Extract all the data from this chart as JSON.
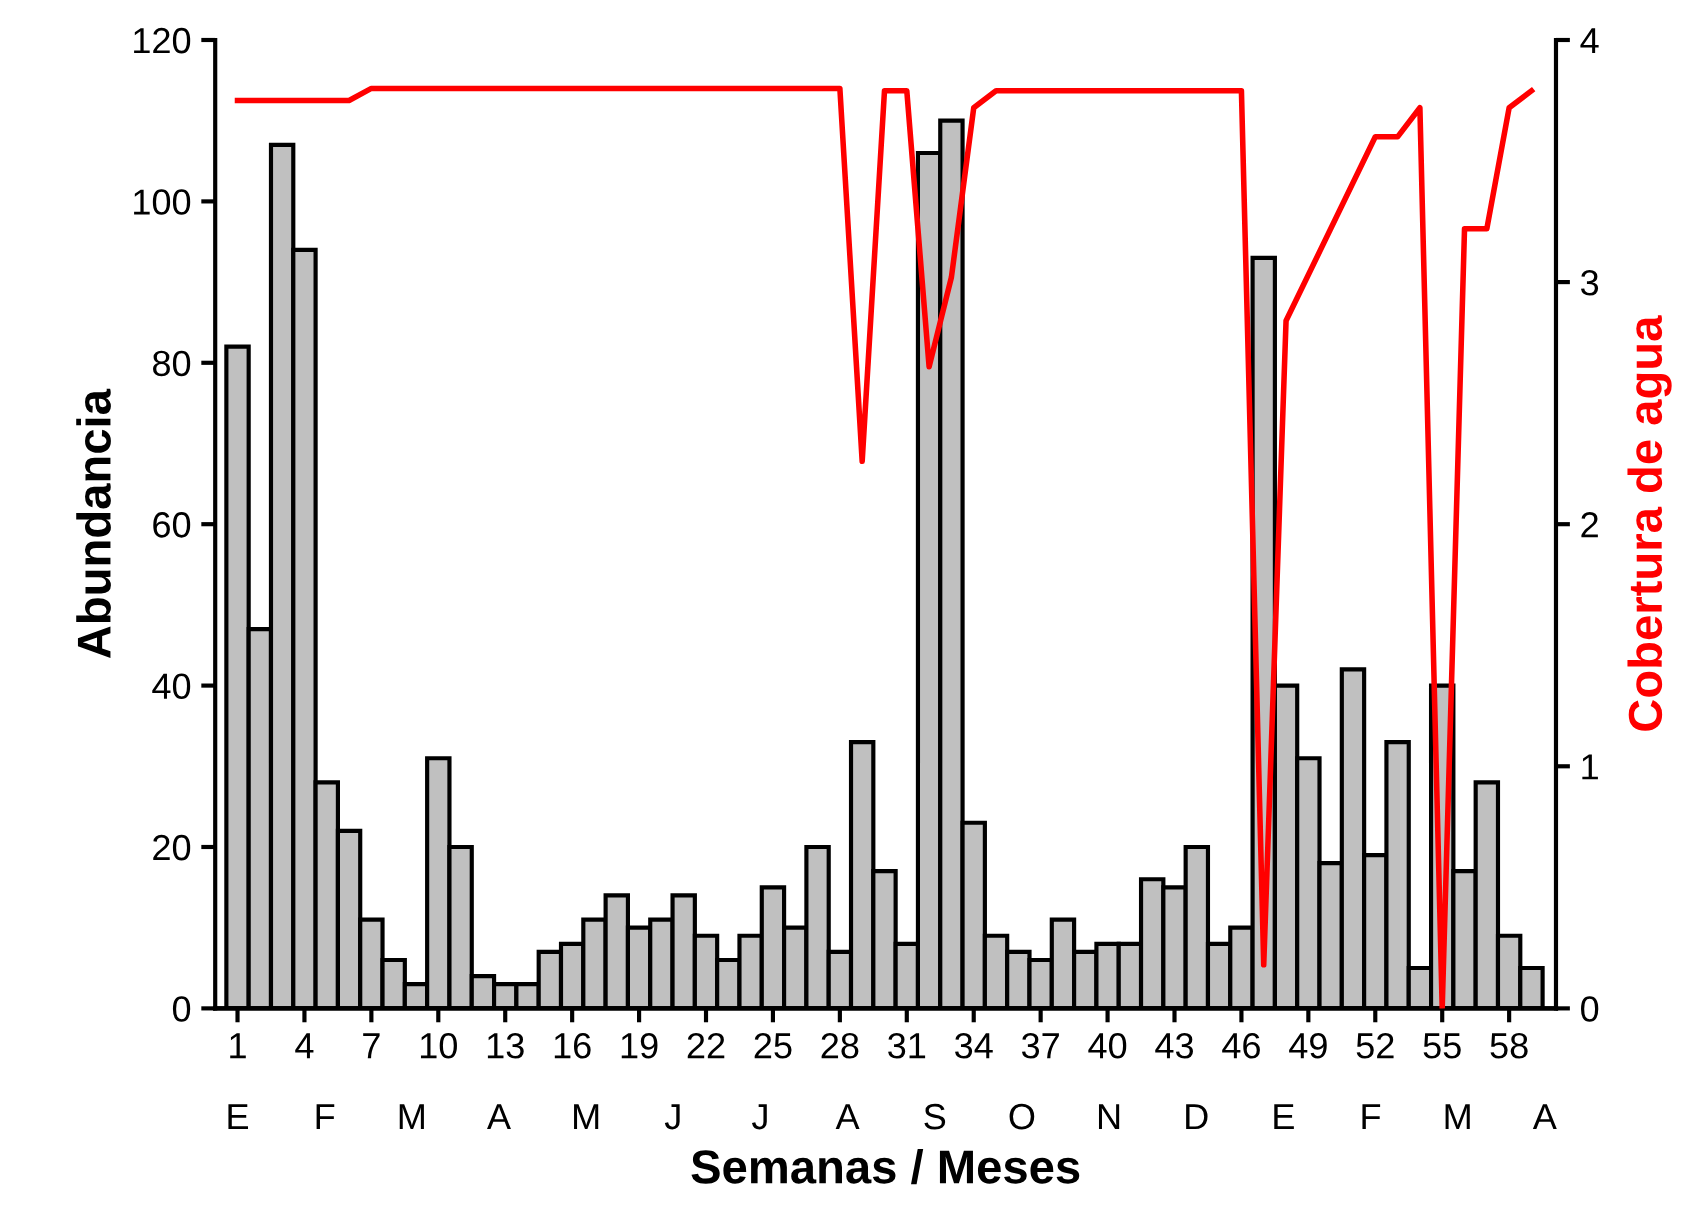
{
  "chart_data": {
    "type": "bar",
    "xlabel": "Semanas / Meses",
    "ylabel": "Abundancia",
    "y2label": "Cobertura de agua",
    "x": [
      1,
      2,
      3,
      4,
      5,
      6,
      7,
      8,
      9,
      10,
      11,
      12,
      13,
      14,
      15,
      16,
      17,
      18,
      19,
      20,
      21,
      22,
      23,
      24,
      25,
      26,
      27,
      28,
      29,
      30,
      31,
      32,
      33,
      34,
      35,
      36,
      37,
      38,
      39,
      40,
      41,
      42,
      43,
      44,
      45,
      46,
      47,
      48,
      49,
      50,
      51,
      52,
      53,
      54,
      55,
      56,
      57,
      58,
      59
    ],
    "series": [
      {
        "color": "#c0c0c0",
        "values": [
          82,
          47,
          107,
          94,
          28,
          22,
          11,
          6,
          3,
          31,
          20,
          4,
          3,
          3,
          7,
          8,
          11,
          14,
          10,
          11,
          14,
          9,
          6,
          9,
          15,
          10,
          20,
          7,
          33,
          17,
          8,
          106,
          110,
          23,
          9,
          7,
          6,
          11,
          7,
          8,
          8,
          16,
          15,
          20,
          8,
          10,
          93,
          40,
          31,
          18,
          42,
          19,
          33,
          5,
          40,
          17,
          28,
          9,
          5
        ]
      },
      {
        "type": "line",
        "axis": "y2",
        "color": "#ff0000",
        "x": [
          1,
          6,
          7,
          28,
          29,
          30,
          31,
          32,
          33,
          34,
          35,
          46,
          47,
          48,
          52,
          53,
          54,
          55,
          56,
          57,
          58,
          59
        ],
        "values": [
          3.75,
          3.75,
          3.8,
          3.8,
          2.26,
          3.79,
          3.79,
          2.65,
          3.02,
          3.72,
          3.79,
          3.79,
          0.18,
          2.84,
          3.6,
          3.6,
          3.72,
          0,
          3.22,
          3.22,
          3.72,
          3.79
        ]
      }
    ],
    "xlim": [
      0,
      60.1
    ],
    "xticks": [
      1,
      4,
      7,
      10,
      13,
      16,
      19,
      22,
      25,
      28,
      31,
      34,
      37,
      40,
      43,
      46,
      49,
      52,
      55,
      58
    ],
    "annotations": [
      "E",
      "F",
      "M",
      "A",
      "M",
      "J",
      "J",
      "A",
      "S",
      "O",
      "N",
      "D",
      "E",
      "F",
      "M",
      "A"
    ],
    "ylim": [
      0,
      120
    ],
    "yticks": [
      0,
      20,
      40,
      60,
      80,
      100,
      120
    ],
    "y2lim": [
      0,
      4
    ],
    "y2ticks": [
      0,
      1,
      2,
      3,
      4
    ],
    "grid": false,
    "legend": false
  }
}
